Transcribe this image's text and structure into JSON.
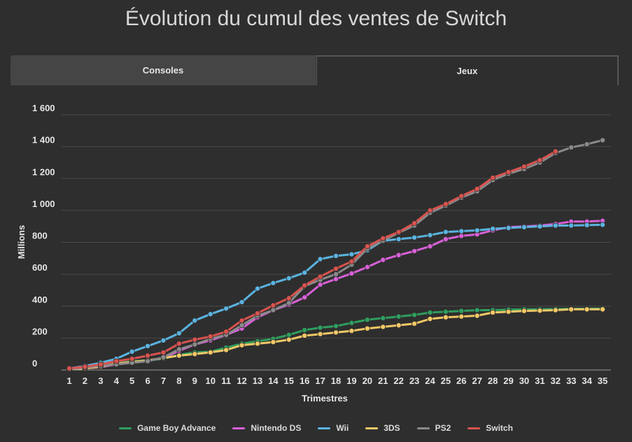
{
  "title": "Évolution du cumul des ventes de Switch",
  "tabs": [
    {
      "label": "Consoles"
    },
    {
      "label": "Jeux"
    }
  ],
  "chart_data": {
    "type": "line",
    "xlabel": "Trimestres",
    "ylabel": "Millions",
    "ylim": [
      0,
      1600
    ],
    "yticks": [
      0,
      200,
      400,
      600,
      800,
      1000,
      1200,
      1400,
      1600
    ],
    "ytick_labels": [
      "0",
      "200",
      "400",
      "600",
      "800",
      "1 000",
      "1 200",
      "1 400",
      "1 600"
    ],
    "categories": [
      "1",
      "2",
      "3",
      "4",
      "5",
      "6",
      "7",
      "8",
      "9",
      "10",
      "11",
      "12",
      "13",
      "14",
      "15",
      "16",
      "17",
      "18",
      "19",
      "20",
      "21",
      "22",
      "23",
      "24",
      "25",
      "26",
      "27",
      "28",
      "29",
      "30",
      "31",
      "32",
      "33",
      "34",
      "35"
    ],
    "legend_position": "bottom",
    "grid": true,
    "series": [
      {
        "name": "Game Boy Advance",
        "color": "#2f9e5f",
        "values": [
          5,
          10,
          20,
          40,
          55,
          60,
          70,
          95,
          110,
          115,
          140,
          165,
          180,
          195,
          220,
          250,
          265,
          275,
          295,
          315,
          325,
          335,
          345,
          360,
          365,
          370,
          375,
          375,
          378,
          380,
          380,
          382,
          383,
          384,
          385
        ]
      },
      {
        "name": "Nintendo DS",
        "color": "#d860d8",
        "values": [
          5,
          10,
          18,
          35,
          45,
          60,
          75,
          120,
          160,
          185,
          220,
          260,
          330,
          375,
          410,
          455,
          535,
          570,
          605,
          645,
          690,
          720,
          745,
          775,
          820,
          840,
          850,
          875,
          895,
          900,
          905,
          915,
          930,
          930,
          935
        ]
      },
      {
        "name": "Wii",
        "color": "#5ab4e0",
        "values": [
          10,
          25,
          45,
          70,
          115,
          150,
          185,
          230,
          310,
          350,
          385,
          425,
          510,
          545,
          575,
          610,
          695,
          715,
          725,
          750,
          810,
          820,
          830,
          845,
          865,
          870,
          875,
          885,
          890,
          895,
          900,
          905,
          905,
          908,
          910
        ]
      },
      {
        "name": "3DS",
        "color": "#f2c866",
        "values": [
          5,
          10,
          20,
          40,
          50,
          60,
          75,
          90,
          100,
          110,
          125,
          155,
          165,
          175,
          190,
          215,
          225,
          235,
          245,
          260,
          270,
          280,
          290,
          320,
          330,
          335,
          340,
          360,
          365,
          370,
          372,
          375,
          380,
          380,
          380
        ]
      },
      {
        "name": "PS2",
        "color": "#8a8a8a",
        "values": [
          5,
          15,
          25,
          35,
          45,
          55,
          80,
          130,
          160,
          195,
          220,
          280,
          340,
          375,
          420,
          525,
          565,
          600,
          660,
          760,
          810,
          860,
          905,
          985,
          1030,
          1080,
          1120,
          1190,
          1230,
          1260,
          1300,
          1360,
          1395,
          1415,
          1440
        ]
      },
      {
        "name": "Switch",
        "color": "#d9534f",
        "values": [
          10,
          20,
          35,
          55,
          70,
          90,
          110,
          165,
          190,
          210,
          240,
          310,
          355,
          405,
          450,
          530,
          585,
          635,
          680,
          775,
          825,
          865,
          920,
          1000,
          1040,
          1090,
          1135,
          1205,
          1240,
          1275,
          1315,
          1370,
          null,
          null,
          null
        ]
      }
    ]
  }
}
